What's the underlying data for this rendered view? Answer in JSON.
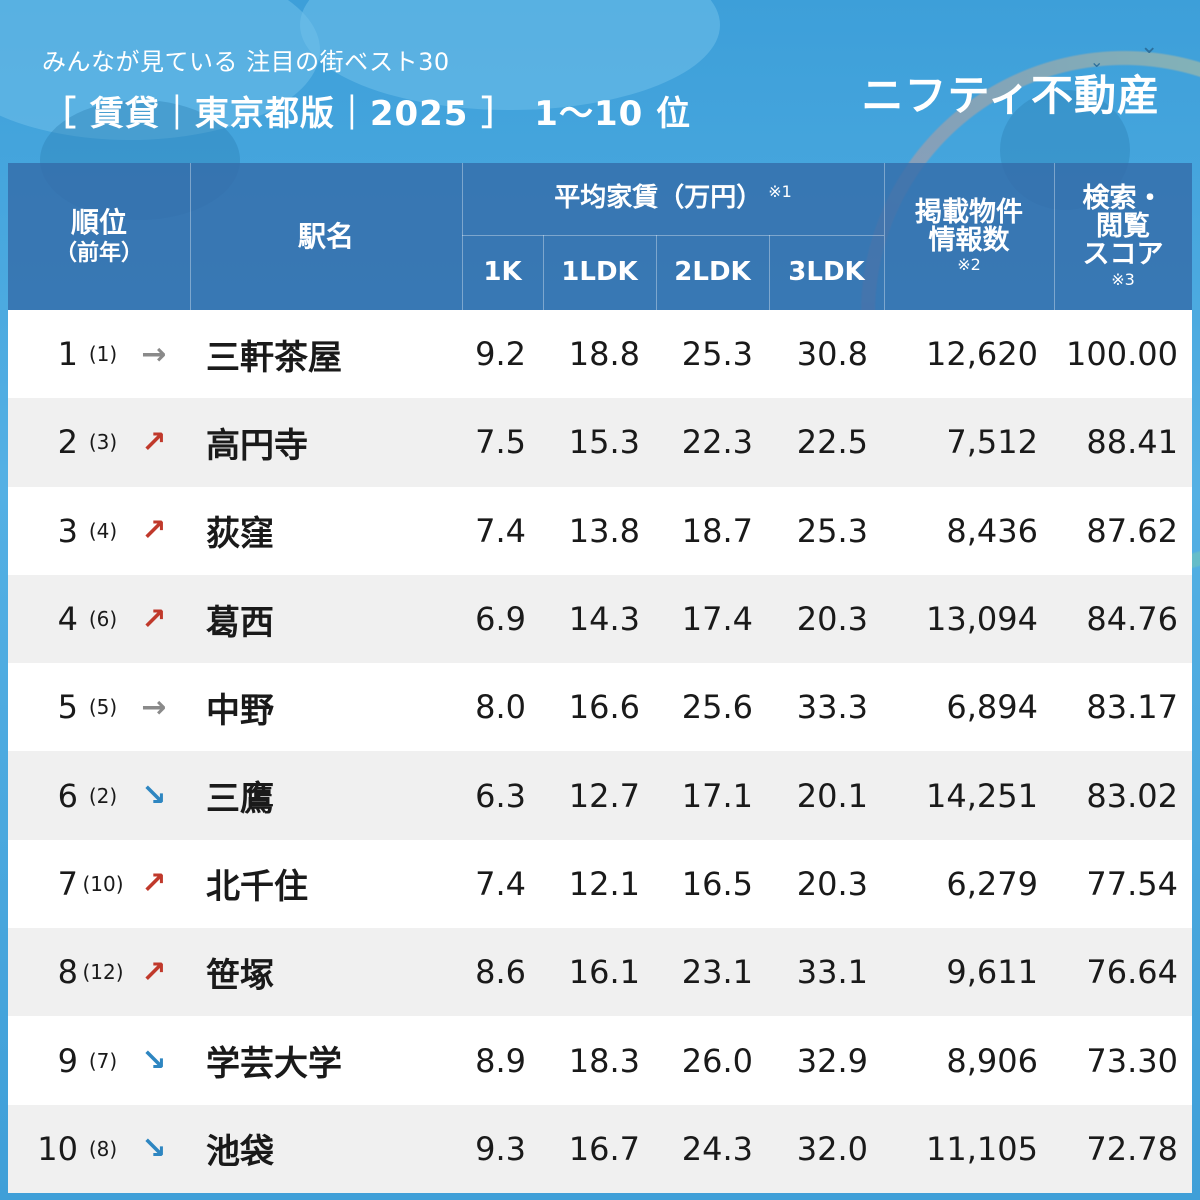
{
  "header": {
    "subtitle": "みんなが見ている 注目の街ベスト30",
    "title": "［ 賃貸｜東京都版｜2025 ］　1〜10 位",
    "brand": "ニフティ不動産"
  },
  "colors": {
    "up": "#c0392b",
    "down": "#2e86c1",
    "flat": "#8a8a8a",
    "header_bg": "#346caa"
  },
  "table": {
    "headers": {
      "rank": "順位",
      "rank_prev": "（前年）",
      "station": "駅名",
      "rent_group": "平均家賃（万円）",
      "rent_group_note": "※1",
      "k1": "1K",
      "ldk1": "1LDK",
      "ldk2": "2LDK",
      "ldk3": "3LDK",
      "listings_line1": "掲載物件",
      "listings_line2": "情報数",
      "listings_note": "※2",
      "score_line1": "検索・",
      "score_line2": "閲覧",
      "score_line3": "スコア",
      "score_note": "※3"
    },
    "rows": [
      {
        "rank": "1",
        "prev": "(1)",
        "trend": "→",
        "trend_type": "flat",
        "station": "三軒茶屋",
        "k1": "9.2",
        "ldk1": "18.8",
        "ldk2": "25.3",
        "ldk3": "30.8",
        "listings": "12,620",
        "score": "100.00"
      },
      {
        "rank": "2",
        "prev": "(3)",
        "trend": "↗",
        "trend_type": "up",
        "station": "高円寺",
        "k1": "7.5",
        "ldk1": "15.3",
        "ldk2": "22.3",
        "ldk3": "22.5",
        "listings": "7,512",
        "score": "88.41"
      },
      {
        "rank": "3",
        "prev": "(4)",
        "trend": "↗",
        "trend_type": "up",
        "station": "荻窪",
        "k1": "7.4",
        "ldk1": "13.8",
        "ldk2": "18.7",
        "ldk3": "25.3",
        "listings": "8,436",
        "score": "87.62"
      },
      {
        "rank": "4",
        "prev": "(6)",
        "trend": "↗",
        "trend_type": "up",
        "station": "葛西",
        "k1": "6.9",
        "ldk1": "14.3",
        "ldk2": "17.4",
        "ldk3": "20.3",
        "listings": "13,094",
        "score": "84.76"
      },
      {
        "rank": "5",
        "prev": "(5)",
        "trend": "→",
        "trend_type": "flat",
        "station": "中野",
        "k1": "8.0",
        "ldk1": "16.6",
        "ldk2": "25.6",
        "ldk3": "33.3",
        "listings": "6,894",
        "score": "83.17"
      },
      {
        "rank": "6",
        "prev": "(2)",
        "trend": "↘",
        "trend_type": "down",
        "station": "三鷹",
        "k1": "6.3",
        "ldk1": "12.7",
        "ldk2": "17.1",
        "ldk3": "20.1",
        "listings": "14,251",
        "score": "83.02"
      },
      {
        "rank": "7",
        "prev": "(10)",
        "trend": "↗",
        "trend_type": "up",
        "station": "北千住",
        "k1": "7.4",
        "ldk1": "12.1",
        "ldk2": "16.5",
        "ldk3": "20.3",
        "listings": "6,279",
        "score": "77.54"
      },
      {
        "rank": "8",
        "prev": "(12)",
        "trend": "↗",
        "trend_type": "up",
        "station": "笹塚",
        "k1": "8.6",
        "ldk1": "16.1",
        "ldk2": "23.1",
        "ldk3": "33.1",
        "listings": "9,611",
        "score": "76.64"
      },
      {
        "rank": "9",
        "prev": "(7)",
        "trend": "↘",
        "trend_type": "down",
        "station": "学芸大学",
        "k1": "8.9",
        "ldk1": "18.3",
        "ldk2": "26.0",
        "ldk3": "32.9",
        "listings": "8,906",
        "score": "73.30"
      },
      {
        "rank": "10",
        "prev": "(8)",
        "trend": "↘",
        "trend_type": "down",
        "station": "池袋",
        "k1": "9.3",
        "ldk1": "16.7",
        "ldk2": "24.3",
        "ldk3": "32.0",
        "listings": "11,105",
        "score": "72.78"
      }
    ]
  }
}
